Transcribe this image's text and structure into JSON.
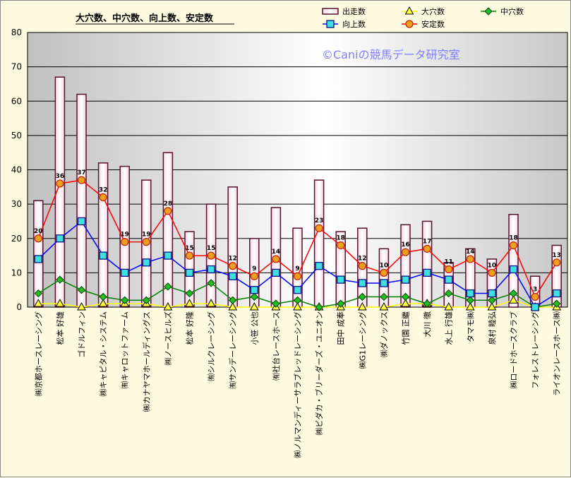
{
  "chart_data": {
    "type": "bar+line",
    "title": "大穴数、中穴数、向上数、安定数",
    "watermark": "©Caniの競馬データ研究室",
    "ylim": [
      0,
      80
    ],
    "yticks": [
      0,
      10,
      20,
      30,
      40,
      50,
      60,
      70,
      80
    ],
    "grid": true,
    "legend_position": "top-right",
    "categories": [
      "㈱京都ホースレーシング",
      "松本 好雄",
      "ゴドルフィン",
      "㈱キャピタル・システム",
      "㈲キャロットファーム",
      "㈱カナヤマホールディングス",
      "㈱ノースヒルズ",
      "松本 好隆",
      "㈲シルクレーシング",
      "㈲サンデーレーシング",
      "小笹 公也",
      "㈲社台レースホース",
      "㈱ノルマンディーサラブレッドレーシング",
      "㈱ビダカ・ブリーダーズ・ユニオン",
      "田中 成奉",
      "㈱G1レーシング",
      "㈱ダノックス",
      "竹園 正繼",
      "大川 徹",
      "水上 行雄",
      "タマモ㈱",
      "泉村 睦弘",
      "㈱ロードホースクラブ",
      "フォレストレーシング",
      "ライオンレースホース㈱"
    ],
    "series": [
      {
        "name": "出走数",
        "type": "bar",
        "color": "#5a1030",
        "values": [
          31,
          67,
          62,
          42,
          41,
          37,
          45,
          22,
          30,
          35,
          20,
          29,
          23,
          37,
          22,
          23,
          17,
          24,
          25,
          13,
          17,
          14,
          27,
          9,
          18
        ]
      },
      {
        "name": "大穴数",
        "type": "line",
        "color": "#ffff00",
        "marker": "triangle",
        "values": [
          1,
          1,
          0,
          1,
          1,
          1,
          0,
          1,
          1,
          0,
          0,
          0,
          0,
          0,
          0,
          0,
          0,
          1,
          1,
          0,
          0,
          0,
          2,
          0,
          0
        ]
      },
      {
        "name": "中穴数",
        "type": "line",
        "color": "#008000",
        "marker": "diamond",
        "values": [
          4,
          8,
          5,
          3,
          2,
          2,
          6,
          4,
          7,
          2,
          3,
          1,
          2,
          0,
          1,
          3,
          3,
          3,
          1,
          4,
          2,
          2,
          4,
          0,
          1
        ]
      },
      {
        "name": "向上数",
        "type": "line",
        "color": "#0000ff",
        "marker": "square",
        "values": [
          14,
          20,
          25,
          15,
          10,
          13,
          15,
          10,
          11,
          9,
          5,
          10,
          5,
          12,
          8,
          7,
          7,
          8,
          10,
          8,
          4,
          4,
          11,
          0,
          4
        ]
      },
      {
        "name": "安定数",
        "type": "line",
        "color": "#ff0000",
        "marker": "circle",
        "values": [
          20,
          36,
          37,
          32,
          19,
          19,
          28,
          15,
          15,
          12,
          9,
          14,
          9,
          23,
          18,
          12,
          10,
          16,
          17,
          11,
          14,
          10,
          18,
          3,
          13
        ]
      }
    ],
    "data_labels_series": "安定数"
  }
}
